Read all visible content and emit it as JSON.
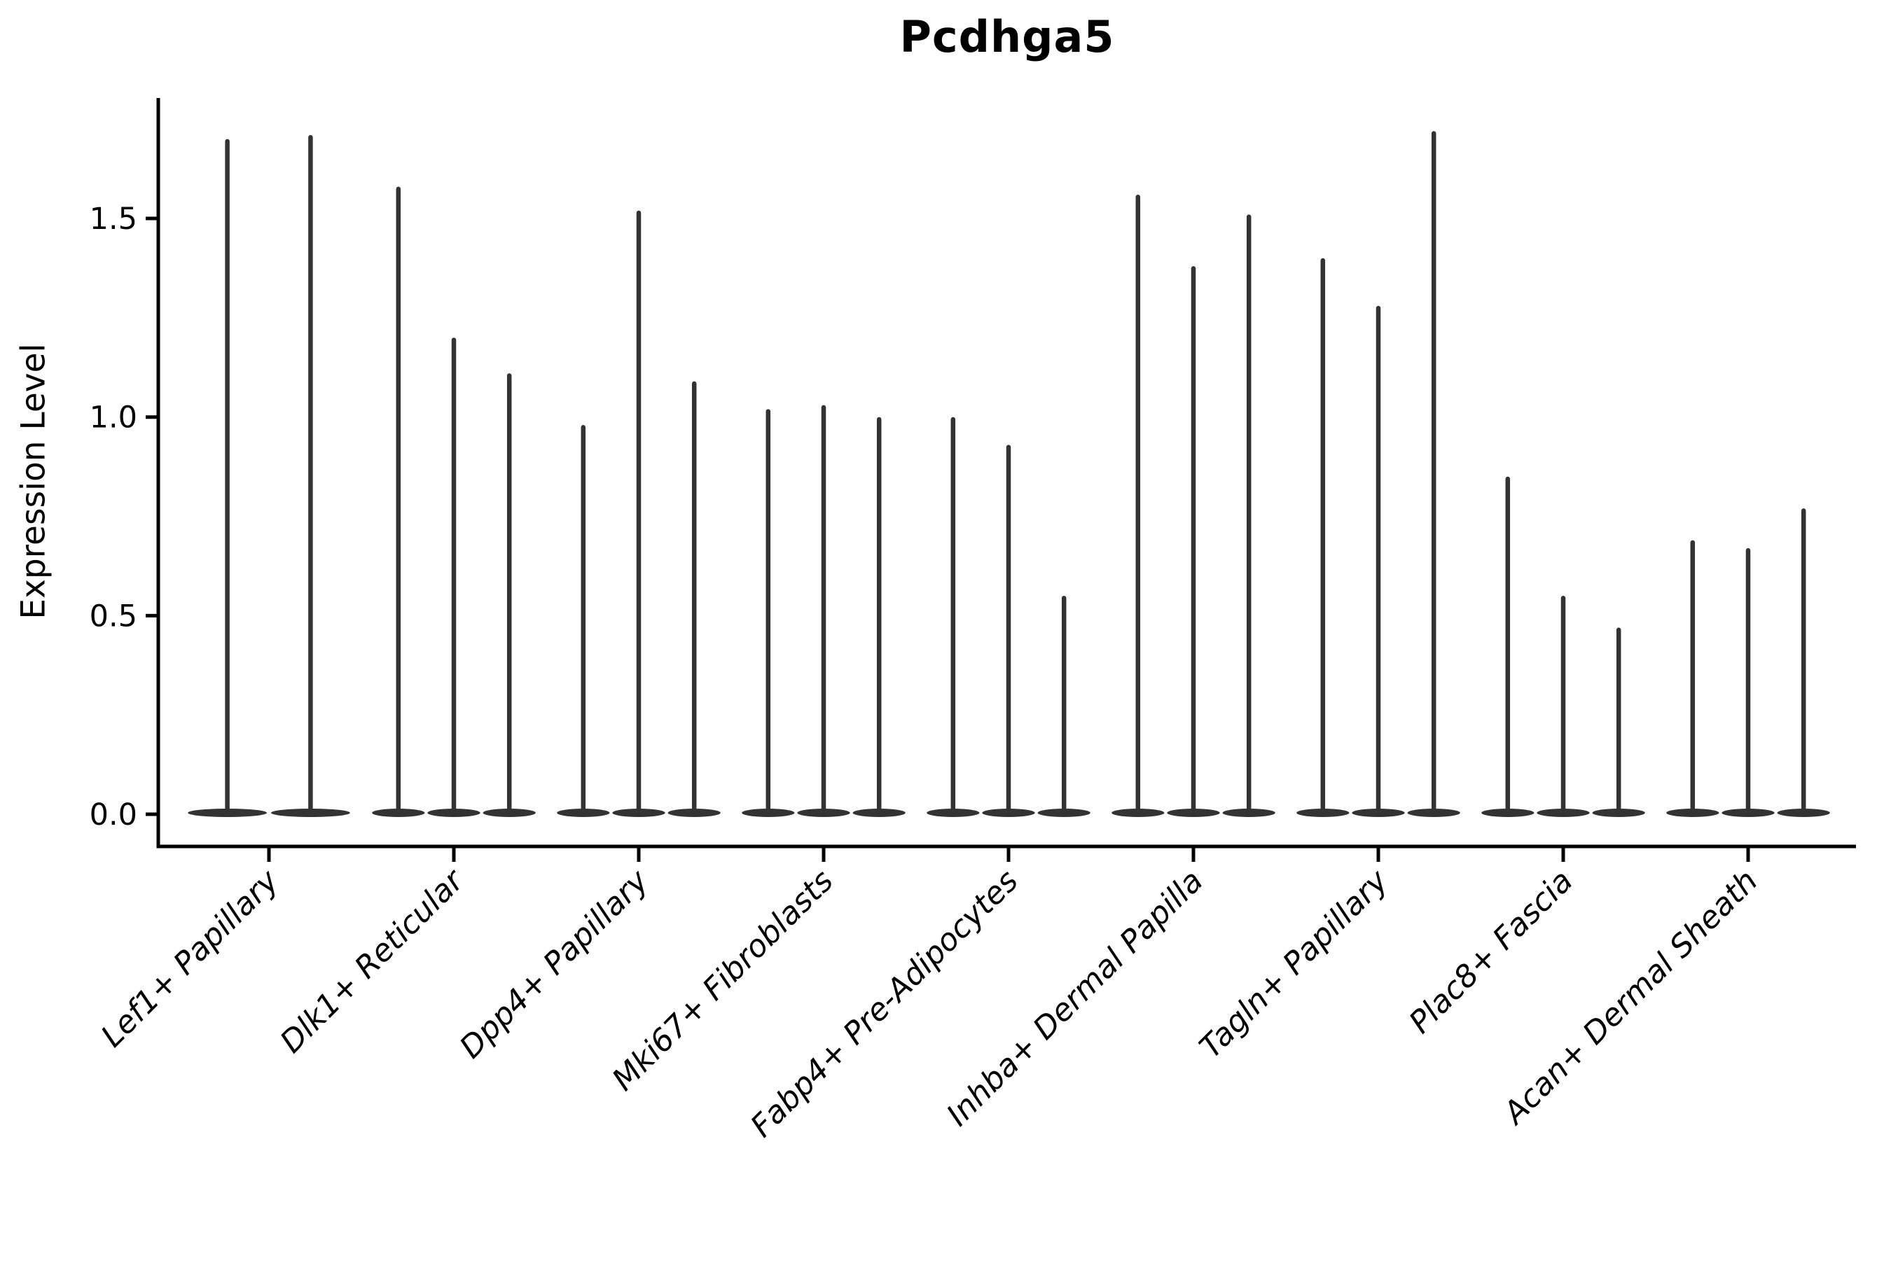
{
  "title": "Pcdhga5",
  "y_axis": {
    "label": "Expression Level",
    "tick_labels": [
      "0.0",
      "0.5",
      "1.0",
      "1.5"
    ],
    "tick_values": [
      0.0,
      0.5,
      1.0,
      1.5
    ]
  },
  "x_axis": {
    "categories": [
      "Lef1+ Papillary",
      "Dlk1+ Reticular",
      "Dpp4+ Papillary",
      "Mki67+ Fibroblasts",
      "Fabp4+ Pre-Adipocytes",
      "Inhba+ Dermal Papilla",
      "Tagln+ Papillary",
      "Plac8+ Fascia",
      "Acan+ Dermal Sheath"
    ]
  },
  "colors": {
    "violin": "#333333",
    "axis": "#000000",
    "background": "#ffffff"
  },
  "chart_data": {
    "type": "violin",
    "title": "Pcdhga5",
    "xlabel": "",
    "ylabel": "Expression Level",
    "ylim": [
      -0.08,
      1.8
    ],
    "yticks": [
      0.0,
      0.5,
      1.0,
      1.5
    ],
    "grid": false,
    "legend": "none",
    "description": "Grouped violin plot of gene expression; each category shows 2-3 extremely thin violins with bulk mass at 0 and a narrow tail reaching the listed maximum expression level.",
    "categories": [
      "Lef1+ Papillary",
      "Dlk1+ Reticular",
      "Dpp4+ Papillary",
      "Mki67+ Fibroblasts",
      "Fabp4+ Pre-Adipocytes",
      "Inhba+ Dermal Papilla",
      "Tagln+ Papillary",
      "Plac8+ Fascia",
      "Acan+ Dermal Sheath"
    ],
    "series": [
      {
        "name": "Lef1+ Papillary",
        "violin_maxima": [
          1.7,
          1.71
        ]
      },
      {
        "name": "Dlk1+ Reticular",
        "violin_maxima": [
          1.58,
          1.2,
          1.11
        ]
      },
      {
        "name": "Dpp4+ Papillary",
        "violin_maxima": [
          0.98,
          1.52,
          1.09
        ]
      },
      {
        "name": "Mki67+ Fibroblasts",
        "violin_maxima": [
          1.02,
          1.03,
          1.0
        ]
      },
      {
        "name": "Fabp4+ Pre-Adipocytes",
        "violin_maxima": [
          1.0,
          0.93,
          0.55
        ]
      },
      {
        "name": "Inhba+ Dermal Papilla",
        "violin_maxima": [
          1.56,
          1.38,
          1.51
        ]
      },
      {
        "name": "Tagln+ Papillary",
        "violin_maxima": [
          1.4,
          1.28,
          1.72
        ]
      },
      {
        "name": "Plac8+ Fascia",
        "violin_maxima": [
          0.85,
          0.55,
          0.47
        ]
      },
      {
        "name": "Acan+ Dermal Sheath",
        "violin_maxima": [
          0.69,
          0.67,
          0.77
        ]
      }
    ],
    "violin_minimum": 0.0
  }
}
